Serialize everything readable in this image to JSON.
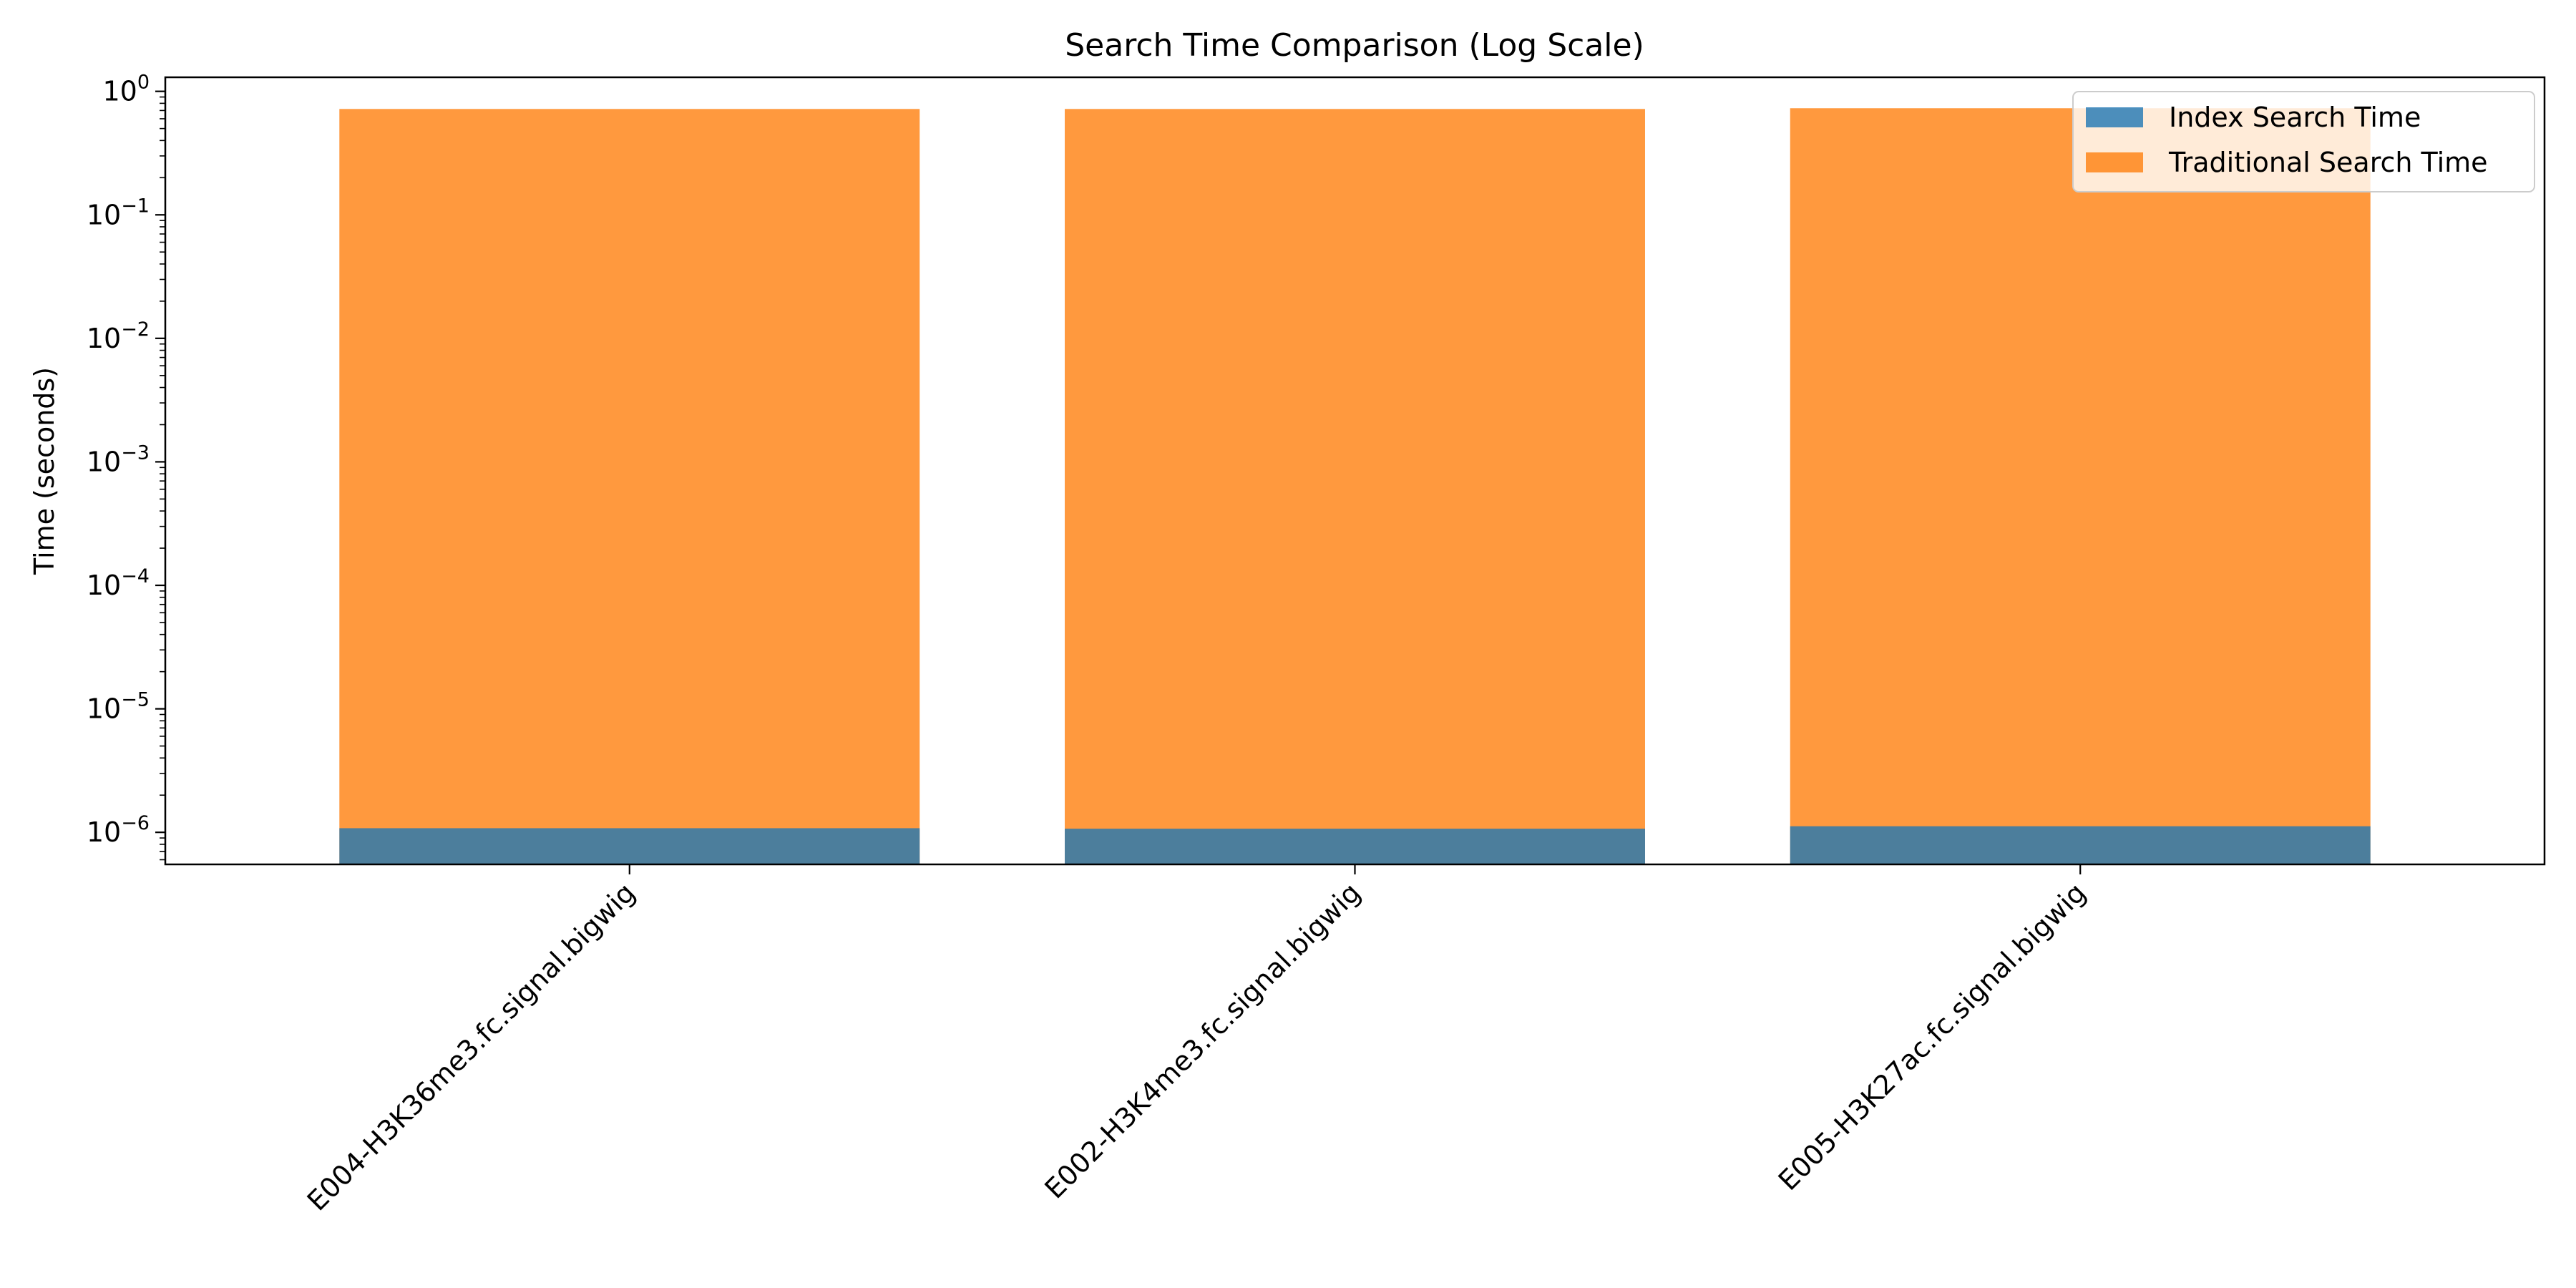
{
  "chart_data": {
    "type": "bar",
    "title": "Search Time Comparison (Log Scale)",
    "xlabel": "",
    "ylabel": "Time (seconds)",
    "yscale": "log",
    "ylim": [
      5.5e-07,
      1.3
    ],
    "grid": false,
    "legend_position": "top-right",
    "categories": [
      "E004-H3K36me3.fc.signal.bigwig",
      "E002-H3K4me3.fc.signal.bigwig",
      "E005-H3K27ac.fc.signal.bigwig"
    ],
    "series": [
      {
        "name": "Index Search Time",
        "color": "#1f77b4",
        "opacity": 0.8,
        "values": [
          1.08e-06,
          1.07e-06,
          1.12e-06
        ]
      },
      {
        "name": "Traditional Search Time",
        "color": "#ff7f0e",
        "opacity": 0.8,
        "values": [
          0.72,
          0.72,
          0.73
        ]
      }
    ],
    "yticks": [
      {
        "value": 1e-06,
        "base": "10",
        "exp": "−6"
      },
      {
        "value": 1e-05,
        "base": "10",
        "exp": "−5"
      },
      {
        "value": 0.0001,
        "base": "10",
        "exp": "−4"
      },
      {
        "value": 0.001,
        "base": "10",
        "exp": "−3"
      },
      {
        "value": 0.01,
        "base": "10",
        "exp": "−2"
      },
      {
        "value": 0.1,
        "base": "10",
        "exp": "−1"
      },
      {
        "value": 1,
        "base": "10",
        "exp": "0"
      }
    ]
  }
}
